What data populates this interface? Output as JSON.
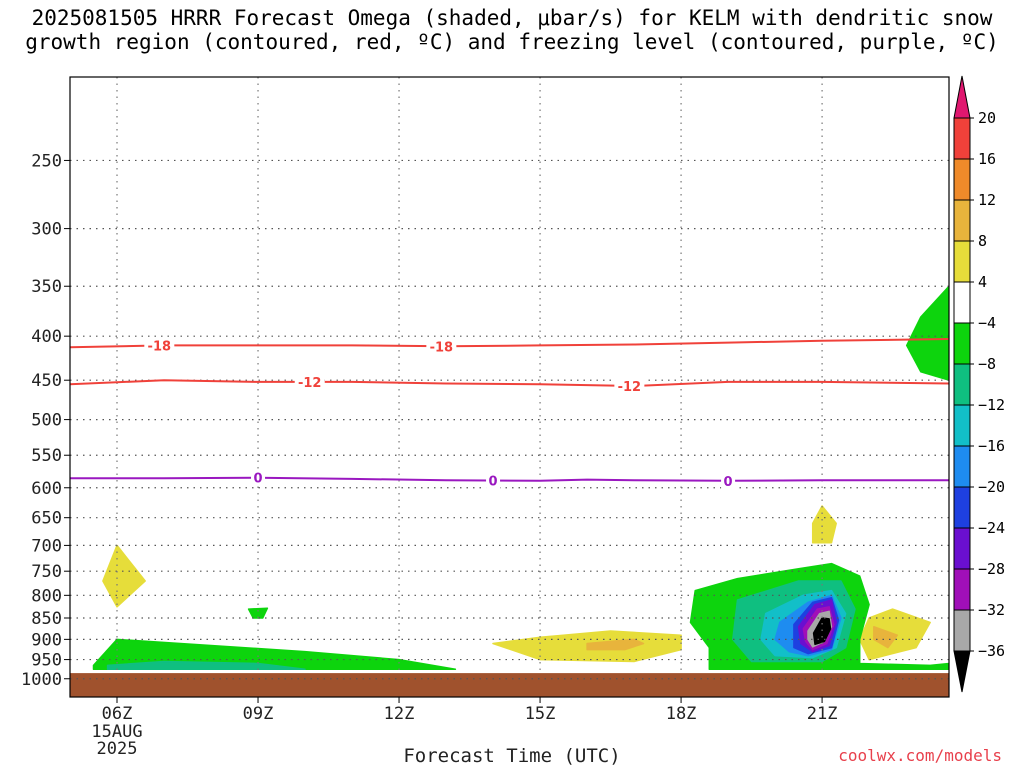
{
  "title_lines": [
    "2025081505 HRRR Forecast Omega (shaded, μbar/s) for KELM with dendritic snow",
    "growth region (contoured, red, ºC) and freezing level (contoured, purple, ºC)"
  ],
  "xlabel": "Forecast Time (UTC)",
  "credit": "coolwx.com/models",
  "chart_data": {
    "type": "heatmap",
    "title": "2025081505 HRRR Forecast Omega (shaded, μbar/s) for KELM with dendritic snow growth region (contoured, red, ºC) and freezing level (contoured, purple, ºC)",
    "xlabel": "Forecast Time (UTC)",
    "ylabel": "",
    "y_scale": "log-pressure",
    "y_inverted": true,
    "xlim_hours": [
      5,
      23.7
    ],
    "ylim_hpa": [
      1050,
      200
    ],
    "grid": true,
    "x_ticks": [
      {
        "hour": 6,
        "label": "06Z"
      },
      {
        "hour": 9,
        "label": "09Z"
      },
      {
        "hour": 12,
        "label": "12Z"
      },
      {
        "hour": 15,
        "label": "15Z"
      },
      {
        "hour": 18,
        "label": "18Z"
      },
      {
        "hour": 21,
        "label": "21Z"
      }
    ],
    "x_date_label": [
      "15AUG",
      "2025"
    ],
    "y_ticks": [
      250,
      300,
      350,
      400,
      450,
      500,
      550,
      600,
      650,
      700,
      750,
      800,
      850,
      900,
      950,
      1000
    ],
    "ground_level_hpa": 985,
    "colorbar": {
      "labels": [
        "20",
        "16",
        "12",
        "8",
        "4",
        "−4",
        "−8",
        "−12",
        "−16",
        "−20",
        "−24",
        "−28",
        "−32",
        "−36"
      ],
      "colors": [
        "#e0176f",
        "#f0413a",
        "#ef8a2a",
        "#e8b43c",
        "#e6dd3a",
        "#ffffff",
        "#0dd40d",
        "#0fbf80",
        "#12bfc8",
        "#1e8cf0",
        "#1e40e0",
        "#6a0fd0",
        "#a00fb8",
        "#a8a8a8",
        "#000000"
      ]
    },
    "contours": [
      {
        "value": -18,
        "label": "-18",
        "color": "#f0413a",
        "points": [
          [
            5,
            412
          ],
          [
            7,
            410
          ],
          [
            9,
            410
          ],
          [
            11,
            410
          ],
          [
            13,
            411
          ],
          [
            15,
            410
          ],
          [
            17,
            409
          ],
          [
            19,
            407
          ],
          [
            21,
            405
          ],
          [
            23.7,
            403
          ]
        ]
      },
      {
        "value": -12,
        "label": "-12",
        "color": "#f0413a",
        "points": [
          [
            5,
            455
          ],
          [
            7,
            450
          ],
          [
            9,
            452
          ],
          [
            11,
            452
          ],
          [
            13,
            454
          ],
          [
            15,
            455
          ],
          [
            17,
            457
          ],
          [
            19,
            452
          ],
          [
            21,
            452
          ],
          [
            23.7,
            454
          ]
        ]
      },
      {
        "value": 0,
        "label": "0",
        "color": "#9a18c0",
        "points": [
          [
            5,
            585
          ],
          [
            7,
            585
          ],
          [
            9,
            584
          ],
          [
            11,
            586
          ],
          [
            13,
            588
          ],
          [
            15,
            589
          ],
          [
            16,
            587
          ],
          [
            17,
            588
          ],
          [
            19,
            589
          ],
          [
            21,
            588
          ],
          [
            23.7,
            588
          ]
        ]
      }
    ],
    "contour_label_positions": [
      {
        "value": -18,
        "hours": [
          6.9,
          12.9
        ]
      },
      {
        "value": -12,
        "hours": [
          10.1,
          16.9
        ]
      },
      {
        "value": 0,
        "hours": [
          9,
          14,
          19
        ]
      }
    ],
    "omega_regions": [
      {
        "level": "4",
        "color": "#e6dd3a",
        "points": [
          [
            6.0,
            700
          ],
          [
            6.6,
            770
          ],
          [
            6.0,
            825
          ],
          [
            5.7,
            770
          ]
        ]
      },
      {
        "level": "4",
        "color": "#e6dd3a",
        "points": [
          [
            21.0,
            630
          ],
          [
            21.3,
            660
          ],
          [
            21.2,
            695
          ],
          [
            20.8,
            695
          ],
          [
            20.8,
            660
          ]
        ]
      },
      {
        "level": "-4",
        "color": "#0dd40d",
        "points": [
          [
            8.8,
            830
          ],
          [
            9.2,
            828
          ],
          [
            9.1,
            850
          ],
          [
            8.9,
            850
          ]
        ]
      },
      {
        "level": "-4",
        "color": "#0dd40d",
        "points": [
          [
            5.5,
            965
          ],
          [
            6.0,
            900
          ],
          [
            8.0,
            915
          ],
          [
            10.0,
            930
          ],
          [
            12.0,
            950
          ],
          [
            13.2,
            975
          ],
          [
            5.5,
            975
          ]
        ]
      },
      {
        "level": "-8",
        "color": "#0fbf80",
        "points": [
          [
            5.8,
            965
          ],
          [
            7.0,
            955
          ],
          [
            9.0,
            960
          ],
          [
            10.0,
            975
          ],
          [
            5.8,
            975
          ]
        ]
      },
      {
        "level": "4",
        "color": "#e6dd3a",
        "points": [
          [
            14.0,
            910
          ],
          [
            15.0,
            895
          ],
          [
            16.5,
            880
          ],
          [
            18.0,
            890
          ],
          [
            18.0,
            925
          ],
          [
            17.0,
            955
          ],
          [
            15.0,
            950
          ]
        ]
      },
      {
        "level": "8",
        "color": "#e8b43c",
        "points": [
          [
            16.0,
            910
          ],
          [
            17.0,
            900
          ],
          [
            17.2,
            910
          ],
          [
            16.8,
            925
          ],
          [
            16.0,
            925
          ]
        ]
      },
      {
        "level": "4",
        "color": "#e6dd3a",
        "points": [
          [
            22.0,
            850
          ],
          [
            22.5,
            830
          ],
          [
            23.3,
            860
          ],
          [
            23.0,
            920
          ],
          [
            22.0,
            950
          ],
          [
            21.8,
            900
          ]
        ]
      },
      {
        "level": "8",
        "color": "#e8b43c",
        "points": [
          [
            22.1,
            870
          ],
          [
            22.6,
            890
          ],
          [
            22.4,
            920
          ],
          [
            22.1,
            900
          ]
        ]
      },
      {
        "level": "-4",
        "color": "#0dd40d",
        "points": [
          [
            23.7,
            350
          ],
          [
            23.1,
            380
          ],
          [
            22.8,
            410
          ],
          [
            23.1,
            440
          ],
          [
            23.7,
            450
          ]
        ]
      },
      {
        "level": "-4",
        "color": "#0dd40d",
        "points": [
          [
            18.3,
            790
          ],
          [
            19.2,
            765
          ],
          [
            20.5,
            745
          ],
          [
            21.2,
            735
          ],
          [
            21.8,
            760
          ],
          [
            22.0,
            820
          ],
          [
            21.8,
            900
          ],
          [
            21.8,
            960
          ],
          [
            23.3,
            965
          ],
          [
            23.7,
            960
          ],
          [
            23.7,
            975
          ],
          [
            18.6,
            975
          ],
          [
            18.6,
            920
          ],
          [
            18.2,
            860
          ]
        ]
      },
      {
        "level": "-8",
        "color": "#0fbf80",
        "points": [
          [
            19.2,
            810
          ],
          [
            20.5,
            770
          ],
          [
            21.4,
            770
          ],
          [
            21.7,
            830
          ],
          [
            21.5,
            920
          ],
          [
            21.0,
            955
          ],
          [
            19.5,
            955
          ],
          [
            19.1,
            900
          ]
        ]
      },
      {
        "level": "-12",
        "color": "#12bfc8",
        "points": [
          [
            19.8,
            840
          ],
          [
            20.6,
            800
          ],
          [
            21.2,
            790
          ],
          [
            21.5,
            840
          ],
          [
            21.3,
            920
          ],
          [
            20.8,
            945
          ],
          [
            20.0,
            940
          ],
          [
            19.7,
            900
          ]
        ]
      },
      {
        "level": "-16",
        "color": "#1e8cf0",
        "points": [
          [
            20.1,
            860
          ],
          [
            20.7,
            815
          ],
          [
            21.2,
            800
          ],
          [
            21.4,
            850
          ],
          [
            21.2,
            925
          ],
          [
            20.7,
            940
          ],
          [
            20.3,
            930
          ],
          [
            20.0,
            900
          ]
        ]
      },
      {
        "level": "-20",
        "color": "#1e40e0",
        "points": [
          [
            20.4,
            865
          ],
          [
            20.8,
            815
          ],
          [
            21.2,
            805
          ],
          [
            21.35,
            855
          ],
          [
            21.2,
            920
          ],
          [
            20.7,
            935
          ],
          [
            20.4,
            920
          ]
        ]
      },
      {
        "level": "-24",
        "color": "#6a0fd0",
        "points": [
          [
            20.5,
            870
          ],
          [
            20.85,
            820
          ],
          [
            21.2,
            810
          ],
          [
            21.3,
            860
          ],
          [
            21.15,
            915
          ],
          [
            20.8,
            930
          ],
          [
            20.55,
            910
          ]
        ]
      },
      {
        "level": "-28",
        "color": "#a00fb8",
        "points": [
          [
            20.6,
            875
          ],
          [
            20.9,
            830
          ],
          [
            21.15,
            825
          ],
          [
            21.25,
            865
          ],
          [
            21.1,
            910
          ],
          [
            20.8,
            925
          ],
          [
            20.65,
            905
          ]
        ]
      },
      {
        "level": "-32",
        "color": "#a8a8a8",
        "points": [
          [
            20.7,
            880
          ],
          [
            20.95,
            840
          ],
          [
            21.15,
            835
          ],
          [
            21.2,
            870
          ],
          [
            21.05,
            905
          ],
          [
            20.8,
            918
          ],
          [
            20.7,
            900
          ]
        ]
      },
      {
        "level": "-36",
        "color": "#000000",
        "points": [
          [
            20.82,
            885
          ],
          [
            21.0,
            850
          ],
          [
            21.15,
            852
          ],
          [
            21.18,
            875
          ],
          [
            21.05,
            905
          ],
          [
            20.85,
            912
          ]
        ]
      }
    ]
  }
}
